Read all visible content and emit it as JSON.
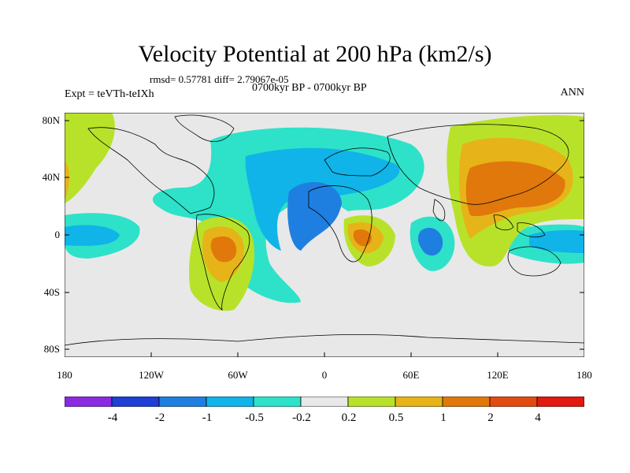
{
  "title": "Velocity Potential at 200 hPa (km2/s)",
  "stats": "rmsd= 0.57781 diff= 2.79067e-05",
  "experiment": "Expt = teVTh-teIXh",
  "period": "0700kyr BP - 0700kyr BP",
  "season": "ANN",
  "lat_labels": [
    "80N",
    "40N",
    "0",
    "40S",
    "80S"
  ],
  "lon_labels": [
    "180",
    "120W",
    "60W",
    "0",
    "60E",
    "120E",
    "180"
  ],
  "colorbar": {
    "labels": [
      "-4",
      "-2",
      "-1",
      "-0.5",
      "-0.2",
      "0.2",
      "0.5",
      "1",
      "2",
      "4"
    ],
    "colors": [
      "#8a2be2",
      "#1f3fd6",
      "#1f7fe0",
      "#10b4e8",
      "#2de2c8",
      "#e8e8e8",
      "#b8e22a",
      "#e6b418",
      "#e0780c",
      "#e24a12",
      "#e01a10"
    ]
  }
}
